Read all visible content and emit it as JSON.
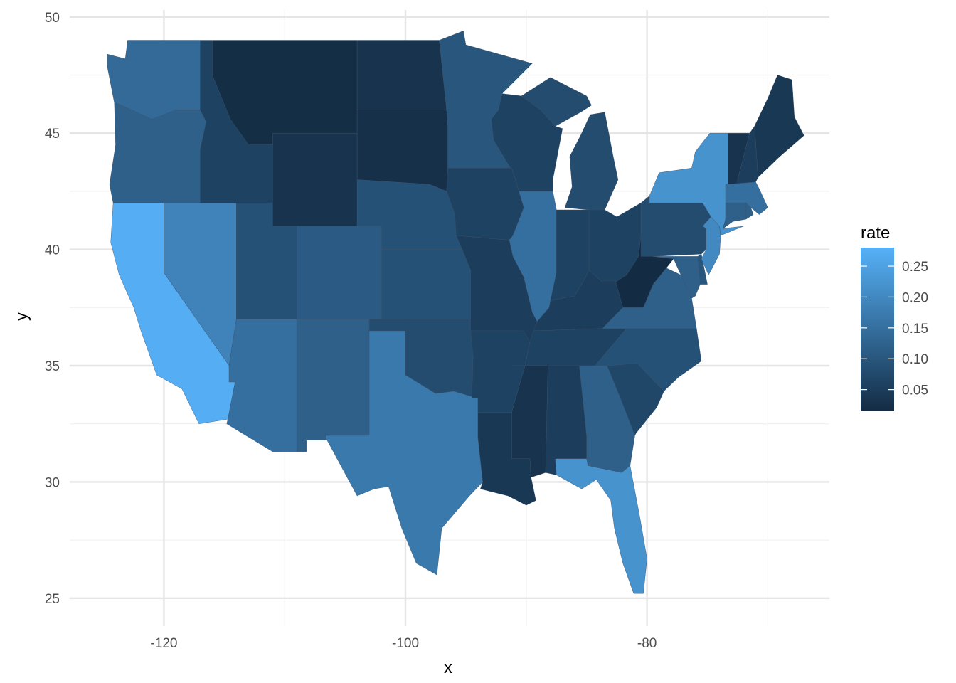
{
  "chart_data": {
    "type": "map",
    "title": "",
    "xlabel": "x",
    "ylabel": "y",
    "xlim": [
      -127.8,
      -64.9
    ],
    "ylim": [
      23.8,
      50.3
    ],
    "x_ticks": [
      -120,
      -100,
      -80
    ],
    "x_tick_labels": [
      "-120",
      "-100",
      "-80"
    ],
    "y_ticks": [
      25,
      30,
      35,
      40,
      45,
      50
    ],
    "y_tick_labels": [
      "25",
      "30",
      "35",
      "40",
      "45",
      "50"
    ],
    "grid": true,
    "legend": {
      "title": "rate",
      "position": "right",
      "breaks": [
        0.05,
        0.1,
        0.15,
        0.2,
        0.25
      ],
      "labels": [
        "0.05",
        "0.10",
        "0.15",
        "0.20",
        "0.25"
      ],
      "range": [
        0.015,
        0.28
      ],
      "low_color": "#132B43",
      "high_color": "#56B1F7"
    },
    "regions": [
      {
        "state": "California",
        "rate": 0.275
      },
      {
        "state": "Nevada",
        "rate": 0.19
      },
      {
        "state": "Oregon",
        "rate": 0.12
      },
      {
        "state": "Washington",
        "rate": 0.14
      },
      {
        "state": "Idaho",
        "rate": 0.06
      },
      {
        "state": "Montana",
        "rate": 0.02
      },
      {
        "state": "Wyoming",
        "rate": 0.03
      },
      {
        "state": "Utah",
        "rate": 0.09
      },
      {
        "state": "Arizona",
        "rate": 0.15
      },
      {
        "state": "Colorado",
        "rate": 0.11
      },
      {
        "state": "New Mexico",
        "rate": 0.12
      },
      {
        "state": "North Dakota",
        "rate": 0.03
      },
      {
        "state": "South Dakota",
        "rate": 0.025
      },
      {
        "state": "Nebraska",
        "rate": 0.09
      },
      {
        "state": "Kansas",
        "rate": 0.09
      },
      {
        "state": "Oklahoma",
        "rate": 0.08
      },
      {
        "state": "Texas",
        "rate": 0.17
      },
      {
        "state": "Minnesota",
        "rate": 0.1
      },
      {
        "state": "Iowa",
        "rate": 0.06
      },
      {
        "state": "Missouri",
        "rate": 0.05
      },
      {
        "state": "Arkansas",
        "rate": 0.06
      },
      {
        "state": "Louisiana",
        "rate": 0.04
      },
      {
        "state": "Wisconsin",
        "rate": 0.06
      },
      {
        "state": "Illinois",
        "rate": 0.15
      },
      {
        "state": "Michigan",
        "rate": 0.08
      },
      {
        "state": "Indiana",
        "rate": 0.06
      },
      {
        "state": "Ohio",
        "rate": 0.06
      },
      {
        "state": "Kentucky",
        "rate": 0.05
      },
      {
        "state": "Tennessee",
        "rate": 0.06
      },
      {
        "state": "Mississippi",
        "rate": 0.03
      },
      {
        "state": "Alabama",
        "rate": 0.05
      },
      {
        "state": "Georgia",
        "rate": 0.12
      },
      {
        "state": "Florida",
        "rate": 0.22
      },
      {
        "state": "South Carolina",
        "rate": 0.07
      },
      {
        "state": "North Carolina",
        "rate": 0.09
      },
      {
        "state": "Virginia",
        "rate": 0.12
      },
      {
        "state": "West Virginia",
        "rate": 0.015
      },
      {
        "state": "Pennsylvania",
        "rate": 0.08
      },
      {
        "state": "New York",
        "rate": 0.22
      },
      {
        "state": "New Jersey",
        "rate": 0.2
      },
      {
        "state": "Maryland",
        "rate": 0.12
      },
      {
        "state": "Delaware",
        "rate": 0.1
      },
      {
        "state": "Connecticut",
        "rate": 0.12
      },
      {
        "state": "Rhode Island",
        "rate": 0.12
      },
      {
        "state": "Massachusetts",
        "rate": 0.15
      },
      {
        "state": "Vermont",
        "rate": 0.03
      },
      {
        "state": "New Hampshire",
        "rate": 0.05
      },
      {
        "state": "Maine",
        "rate": 0.04
      }
    ]
  }
}
